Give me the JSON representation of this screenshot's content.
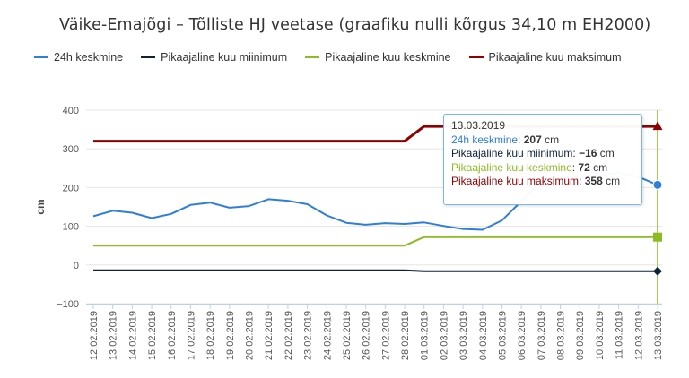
{
  "chart_data": {
    "type": "line",
    "title": "Väike-Emajõgi – Tõlliste HJ veetase (graafiku nulli kõrgus 34,10 m EH2000)",
    "ylabel": "cm",
    "xlabel": "",
    "ylim": [
      -100,
      400
    ],
    "yticks": [
      "400",
      "300",
      "200",
      "100",
      "0",
      "−100"
    ],
    "grid": true,
    "legend_position": "top",
    "categories": [
      "12.02.2019",
      "13.02.2019",
      "14.02.2019",
      "15.02.2019",
      "16.02.2019",
      "17.02.2019",
      "18.02.2019",
      "19.02.2019",
      "20.02.2019",
      "21.02.2019",
      "22.02.2019",
      "23.02.2019",
      "24.02.2019",
      "25.02.2019",
      "26.02.2019",
      "27.02.2019",
      "28.02.2019",
      "01.03.2019",
      "02.03.2019",
      "03.03.2019",
      "04.03.2019",
      "05.03.2019",
      "06.03.2019",
      "07.03.2019",
      "08.03.2019",
      "09.03.2019",
      "10.03.2019",
      "11.03.2019",
      "12.03.2019",
      "13.03.2019"
    ],
    "series": [
      {
        "name": "24h keskmine",
        "color": "#2f7ed8",
        "values": [
          126,
          140,
          135,
          121,
          132,
          155,
          161,
          148,
          152,
          170,
          166,
          157,
          128,
          109,
          104,
          108,
          106,
          110,
          101,
          93,
          91,
          115,
          165,
          218,
          225,
          230,
          232,
          238,
          228,
          207
        ]
      },
      {
        "name": "Pikaajaline kuu miinimum",
        "color": "#0d233a",
        "values": [
          -14,
          -14,
          -14,
          -14,
          -14,
          -14,
          -14,
          -14,
          -14,
          -14,
          -14,
          -14,
          -14,
          -14,
          -14,
          -14,
          -14,
          -16,
          -16,
          -16,
          -16,
          -16,
          -16,
          -16,
          -16,
          -16,
          -16,
          -16,
          -16,
          -16
        ]
      },
      {
        "name": "Pikaajaline kuu keskmine",
        "color": "#8bbc21",
        "values": [
          50,
          50,
          50,
          50,
          50,
          50,
          50,
          50,
          50,
          50,
          50,
          50,
          50,
          50,
          50,
          50,
          50,
          72,
          72,
          72,
          72,
          72,
          72,
          72,
          72,
          72,
          72,
          72,
          72,
          72
        ]
      },
      {
        "name": "Pikaajaline kuu maksimum",
        "color": "#910000",
        "values": [
          320,
          320,
          320,
          320,
          320,
          320,
          320,
          320,
          320,
          320,
          320,
          320,
          320,
          320,
          320,
          320,
          320,
          358,
          358,
          358,
          358,
          358,
          358,
          358,
          358,
          358,
          358,
          358,
          358,
          358
        ]
      }
    ],
    "tooltip": {
      "date": "13.03.2019",
      "rows": [
        {
          "label": "24h keskmine",
          "value": "207",
          "unit": "cm",
          "color": "#2f7ed8"
        },
        {
          "label": "Pikaajaline kuu miinimum",
          "value": "−16",
          "unit": "cm",
          "color": "#0d233a"
        },
        {
          "label": "Pikaajaline kuu keskmine",
          "value": "72",
          "unit": "cm",
          "color": "#8bbc21"
        },
        {
          "label": "Pikaajaline kuu maksimum",
          "value": "358",
          "unit": "cm",
          "color": "#910000"
        }
      ]
    },
    "crosshair_color": "#8bbc21"
  }
}
